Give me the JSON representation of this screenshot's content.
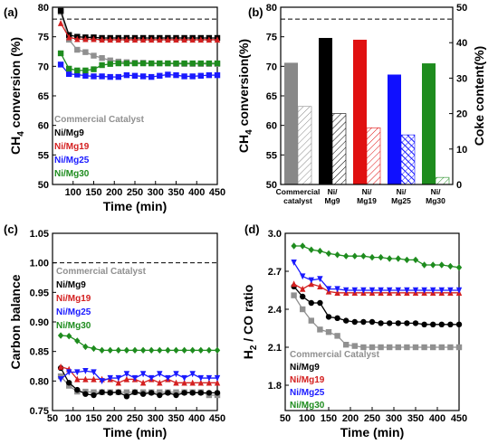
{
  "chart_data": [
    {
      "panel": "(a)",
      "type": "line",
      "xlabel": "Time (min)",
      "ylabel": "CH4 conversion (%)",
      "ylabel_main": "CH",
      "ylabel_sub": "4",
      "ylabel_rest": " conversion (%)",
      "xlim": [
        50,
        450
      ],
      "ylim": [
        50,
        80
      ],
      "xticks": [
        100,
        150,
        200,
        250,
        300,
        350,
        400,
        450
      ],
      "yticks": [
        50,
        55,
        60,
        65,
        70,
        75,
        80
      ],
      "reference_line": 78,
      "legend_position": "center-left",
      "x": [
        70,
        90,
        110,
        130,
        150,
        170,
        190,
        210,
        230,
        250,
        270,
        290,
        310,
        330,
        350,
        370,
        390,
        410,
        430,
        450
      ],
      "series": [
        {
          "name": "Commercial Catalyst",
          "color": "#909090",
          "marker": "square",
          "values": [
            79.2,
            74.5,
            72.8,
            72.4,
            71.8,
            71.4,
            71.0,
            70.8,
            70.7,
            70.6,
            70.6,
            70.5,
            70.5,
            70.5,
            70.4,
            70.4,
            70.4,
            70.4,
            70.4,
            70.4
          ]
        },
        {
          "name": "Ni/Mg9",
          "color": "#000000",
          "marker": "square",
          "values": [
            79.4,
            75.3,
            75.0,
            74.9,
            74.9,
            74.8,
            74.8,
            74.8,
            74.8,
            74.8,
            74.8,
            74.8,
            74.8,
            74.8,
            74.8,
            74.8,
            74.8,
            74.8,
            74.8,
            74.8
          ]
        },
        {
          "name": "Ni/Mg19",
          "color": "#d42020",
          "marker": "triangle",
          "values": [
            77.3,
            74.9,
            74.6,
            74.6,
            74.6,
            74.5,
            74.5,
            74.5,
            74.5,
            74.5,
            74.5,
            74.5,
            74.5,
            74.5,
            74.5,
            74.5,
            74.5,
            74.5,
            74.5,
            74.5
          ]
        },
        {
          "name": "Ni/Mg25",
          "color": "#1a1aff",
          "marker": "square",
          "values": [
            70.3,
            68.7,
            68.6,
            68.4,
            68.3,
            68.3,
            68.2,
            68.2,
            68.5,
            68.4,
            68.3,
            68.2,
            68.4,
            68.6,
            68.5,
            68.3,
            68.3,
            68.4,
            68.5,
            68.5
          ]
        },
        {
          "name": "Ni/Mg30",
          "color": "#1e8c1e",
          "marker": "square",
          "values": [
            72.2,
            69.6,
            69.3,
            69.3,
            69.5,
            70.2,
            70.4,
            70.5,
            70.5,
            70.5,
            70.5,
            70.5,
            70.5,
            70.5,
            70.5,
            70.5,
            70.5,
            70.5,
            70.5,
            70.5
          ]
        }
      ]
    },
    {
      "panel": "(b)",
      "type": "bar",
      "ylabel": "CH4 conversion(%)",
      "ylabel_main": "CH",
      "ylabel_sub": "4",
      "ylabel_rest": " conversion(%)",
      "y2label": "Coke content(%)",
      "ylim": [
        50,
        80
      ],
      "y2lim": [
        0,
        50
      ],
      "yticks": [
        50,
        55,
        60,
        65,
        70,
        75,
        80
      ],
      "y2ticks": [
        0,
        10,
        20,
        30,
        40,
        50
      ],
      "reference_line": 78,
      "categories": [
        {
          "line1": "Commercial",
          "line2": "catalyst"
        },
        {
          "line1": "Ni/",
          "line2": "Mg9"
        },
        {
          "line1": "Ni/",
          "line2": "Mg19"
        },
        {
          "line1": "Ni/",
          "line2": "Mg25"
        },
        {
          "line1": "Ni/",
          "line2": "Mg30"
        }
      ],
      "colors": [
        "#888888",
        "#000000",
        "#e01010",
        "#1010ff",
        "#1e8c1e"
      ],
      "conversion": [
        70.6,
        74.8,
        74.5,
        68.6,
        70.5
      ],
      "coke_content": [
        22,
        20,
        16,
        14,
        2
      ]
    },
    {
      "panel": "(c)",
      "type": "line",
      "xlabel": "Time (min)",
      "ylabel": "Carbon balance",
      "xlim": [
        50,
        450
      ],
      "ylim": [
        0.75,
        1.05
      ],
      "xticks": [
        50,
        100,
        150,
        200,
        250,
        300,
        350,
        400,
        450
      ],
      "yticks": [
        0.75,
        0.8,
        0.85,
        0.9,
        0.95,
        1.0,
        1.05
      ],
      "tick_format": 2,
      "reference_line": 1.0,
      "legend_position": "center-left",
      "x": [
        70,
        90,
        110,
        130,
        150,
        170,
        190,
        210,
        230,
        250,
        270,
        290,
        310,
        330,
        350,
        370,
        390,
        410,
        430,
        450
      ],
      "series": [
        {
          "name": "Commercial Catalyst",
          "color": "#909090",
          "marker": "square",
          "values": [
            0.808,
            0.792,
            0.782,
            0.782,
            0.781,
            0.781,
            0.781,
            0.781,
            0.781,
            0.781,
            0.781,
            0.781,
            0.781,
            0.781,
            0.781,
            0.781,
            0.781,
            0.781,
            0.776,
            0.776
          ]
        },
        {
          "name": "Ni/Mg9",
          "color": "#000000",
          "marker": "circle",
          "values": [
            0.822,
            0.797,
            0.785,
            0.778,
            0.776,
            0.781,
            0.78,
            0.781,
            0.774,
            0.781,
            0.778,
            0.78,
            0.776,
            0.78,
            0.776,
            0.78,
            0.78,
            0.78,
            0.78,
            0.78
          ]
        },
        {
          "name": "Ni/Mg19",
          "color": "#d42020",
          "marker": "triangle",
          "values": [
            0.824,
            0.82,
            0.803,
            0.803,
            0.803,
            0.803,
            0.803,
            0.797,
            0.803,
            0.803,
            0.797,
            0.803,
            0.797,
            0.803,
            0.797,
            0.797,
            0.797,
            0.797,
            0.797,
            0.797
          ]
        },
        {
          "name": "Ni/Mg25",
          "color": "#1a1aff",
          "marker": "triangle-down",
          "values": [
            0.803,
            0.815,
            0.815,
            0.817,
            0.815,
            0.8,
            0.805,
            0.805,
            0.812,
            0.805,
            0.812,
            0.805,
            0.812,
            0.805,
            0.812,
            0.805,
            0.812,
            0.805,
            0.805,
            0.805
          ]
        },
        {
          "name": "Ni/Mg30",
          "color": "#1e8c1e",
          "marker": "diamond",
          "values": [
            0.877,
            0.876,
            0.868,
            0.858,
            0.855,
            0.852,
            0.852,
            0.852,
            0.852,
            0.852,
            0.852,
            0.852,
            0.852,
            0.852,
            0.852,
            0.852,
            0.852,
            0.852,
            0.852,
            0.852
          ]
        }
      ]
    },
    {
      "panel": "(d)",
      "type": "line",
      "xlabel": "Time (min)",
      "ylabel": "H2 / CO ratio",
      "ylabel_main": "H",
      "ylabel_sub": "2",
      "ylabel_rest": " / CO ratio",
      "xlim": [
        50,
        450
      ],
      "ylim": [
        1.6,
        3.0
      ],
      "xticks": [
        50,
        100,
        150,
        200,
        250,
        300,
        350,
        400,
        450
      ],
      "yticks": [
        1.8,
        2.1,
        2.4,
        2.7,
        3.0
      ],
      "tick_format": 1,
      "legend_position": "bottom-left",
      "x": [
        70,
        90,
        110,
        130,
        150,
        170,
        190,
        210,
        230,
        250,
        270,
        290,
        310,
        330,
        350,
        370,
        390,
        410,
        430,
        450
      ],
      "series": [
        {
          "name": "Commercial Catalyst",
          "color": "#909090",
          "marker": "square",
          "values": [
            2.51,
            2.4,
            2.31,
            2.24,
            2.22,
            2.19,
            2.12,
            2.11,
            2.1,
            2.1,
            2.1,
            2.1,
            2.1,
            2.1,
            2.1,
            2.1,
            2.1,
            2.1,
            2.1,
            2.1
          ]
        },
        {
          "name": "Ni/Mg9",
          "color": "#000000",
          "marker": "circle",
          "values": [
            2.58,
            2.5,
            2.45,
            2.45,
            2.34,
            2.33,
            2.31,
            2.3,
            2.3,
            2.3,
            2.29,
            2.29,
            2.29,
            2.29,
            2.29,
            2.28,
            2.28,
            2.28,
            2.28,
            2.28
          ]
        },
        {
          "name": "Ni/Mg19",
          "color": "#d42020",
          "marker": "triangle",
          "values": [
            2.6,
            2.56,
            2.6,
            2.58,
            2.54,
            2.53,
            2.53,
            2.53,
            2.53,
            2.53,
            2.53,
            2.53,
            2.53,
            2.53,
            2.53,
            2.53,
            2.53,
            2.53,
            2.53,
            2.53
          ]
        },
        {
          "name": "Ni/Mg25",
          "color": "#1a1aff",
          "marker": "triangle-down",
          "values": [
            2.77,
            2.66,
            2.63,
            2.64,
            2.56,
            2.56,
            2.55,
            2.55,
            2.55,
            2.55,
            2.55,
            2.55,
            2.55,
            2.55,
            2.55,
            2.55,
            2.55,
            2.55,
            2.55,
            2.55
          ]
        },
        {
          "name": "Ni/Mg30",
          "color": "#1e8c1e",
          "marker": "diamond",
          "values": [
            2.9,
            2.9,
            2.87,
            2.86,
            2.84,
            2.83,
            2.82,
            2.82,
            2.82,
            2.81,
            2.81,
            2.8,
            2.8,
            2.79,
            2.79,
            2.75,
            2.75,
            2.75,
            2.74,
            2.73
          ]
        }
      ]
    }
  ]
}
